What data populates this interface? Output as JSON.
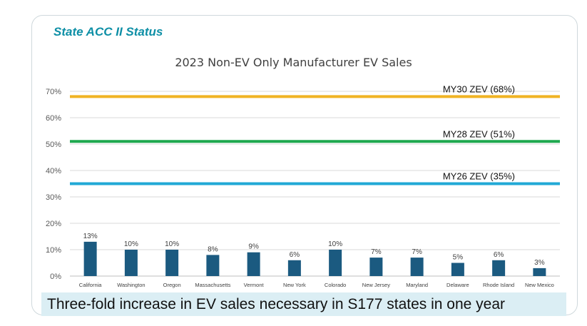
{
  "header": {
    "title": "State ACC II Status"
  },
  "footer": {
    "callout": "Three-fold increase in EV sales necessary in S177 states in one year"
  },
  "colors": {
    "bar": "#1b5a80",
    "my30": "#f0b323",
    "my28": "#1fa84f",
    "my26": "#21a9d6",
    "grid": "#d9d9d9"
  },
  "chart_data": {
    "type": "bar",
    "title": "2023 Non-EV Only Manufacturer EV Sales",
    "categories": [
      "California",
      "Washington",
      "Oregon",
      "Massachusetts",
      "Vermont",
      "New York",
      "Colorado",
      "New Jersey",
      "Maryland",
      "Delaware",
      "Rhode Island",
      "New Mexico"
    ],
    "values": [
      13,
      10,
      10,
      8,
      9,
      6,
      10,
      7,
      7,
      5,
      6,
      3
    ],
    "data_labels": [
      "13%",
      "10%",
      "10%",
      "8%",
      "9%",
      "6%",
      "10%",
      "7%",
      "7%",
      "5%",
      "6%",
      "3%"
    ],
    "ylim": [
      0,
      70
    ],
    "yticks": [
      0,
      10,
      20,
      30,
      40,
      50,
      60,
      70
    ],
    "ytick_labels": [
      "0%",
      "10%",
      "20%",
      "30%",
      "40%",
      "50%",
      "60%",
      "70%"
    ],
    "reference_lines": [
      {
        "label": "MY30 ZEV (68%)",
        "value": 68,
        "color": "#f0b323"
      },
      {
        "label": "MY28 ZEV (51%)",
        "value": 51,
        "color": "#1fa84f"
      },
      {
        "label": "MY26 ZEV (35%)",
        "value": 35,
        "color": "#21a9d6"
      }
    ],
    "grid": true
  }
}
